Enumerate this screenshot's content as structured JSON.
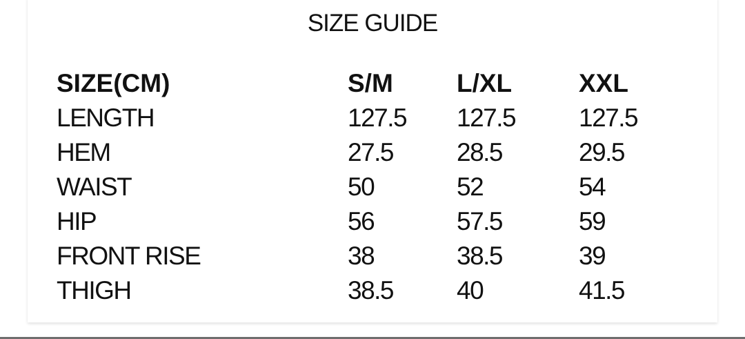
{
  "title": "SIZE GUIDE",
  "table": {
    "headers": [
      "SIZE(CM)",
      "S/M",
      "L/XL",
      "XXL"
    ],
    "rows": [
      [
        "LENGTH",
        "127.5",
        "127.5",
        "127.5"
      ],
      [
        "HEM",
        "27.5",
        "28.5",
        "29.5"
      ],
      [
        "WAIST",
        "50",
        "52",
        "54"
      ],
      [
        "HIP",
        "56",
        "57.5",
        "59"
      ],
      [
        "FRONT RISE",
        "38",
        "38.5",
        "39"
      ],
      [
        "THIGH",
        "38.5",
        "40",
        "41.5"
      ]
    ]
  }
}
